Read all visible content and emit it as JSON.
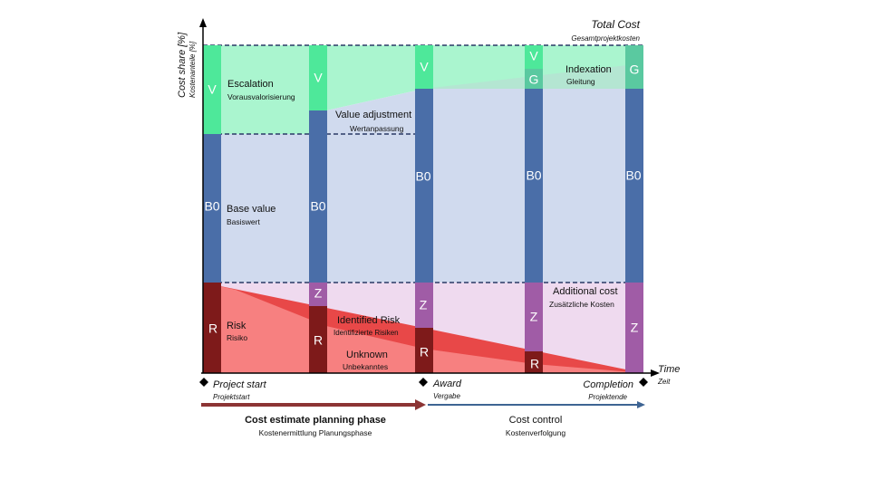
{
  "axes": {
    "y_label": "Cost share [%]",
    "y_sublabel": "Kostenanteile [%]",
    "x_label": "Time",
    "x_sublabel": "Zeit"
  },
  "total": {
    "label": "Total Cost",
    "sublabel": "Gesamtprojektkosten"
  },
  "letters": {
    "V": "V",
    "B0": "B0",
    "R": "R",
    "Z": "Z",
    "G": "G"
  },
  "regions": {
    "escalation": {
      "label": "Escalation",
      "sublabel": "Vorausvalorisierung"
    },
    "value_adjustment": {
      "label": "Value adjustment",
      "sublabel": "Wertanpassung"
    },
    "base_value": {
      "label": "Base value",
      "sublabel": "Basiswert"
    },
    "risk": {
      "label": "Risk",
      "sublabel": "Risiko"
    },
    "identified_risk": {
      "label": "Identified Risk",
      "sublabel": "Identifizierte Risiken"
    },
    "unknown": {
      "label": "Unknown",
      "sublabel": "Unbekanntes"
    },
    "indexation": {
      "label": "Indexation",
      "sublabel": "Gleitung"
    },
    "additional_cost": {
      "label": "Additional cost",
      "sublabel": "Zusätzliche Kosten"
    }
  },
  "milestones": {
    "project_start": {
      "label": "Project start",
      "sublabel": "Projektstart"
    },
    "award": {
      "label": "Award",
      "sublabel": "Vergabe"
    },
    "completion": {
      "label": "Completion",
      "sublabel": "Projektende"
    }
  },
  "phases": {
    "planning": {
      "label": "Cost estimate planning phase",
      "sublabel": "Kostenermittlung Planungsphase"
    },
    "control": {
      "label": "Cost control",
      "sublabel": "Kostenverfolgung"
    }
  },
  "colors": {
    "escalation_bar": "#4ee89a",
    "escalation_area": "#aaf5cf",
    "indexation_bar": "#5ac9a0",
    "base_bar": "#4a6ea8",
    "base_area": "#d0daee",
    "risk_bar": "#7e1a1a",
    "risk_area": "#f78080",
    "identified_area": "#e84848",
    "additional_bar": "#a05ca6",
    "additional_area": "#efdaef",
    "planning_arrow": "#8c3434",
    "control_arrow": "#3e6493"
  }
}
